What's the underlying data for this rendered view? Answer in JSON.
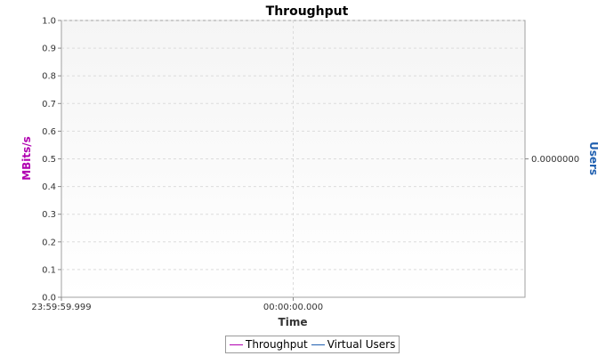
{
  "chart_data": {
    "type": "line",
    "title": "Throughput",
    "xlabel": "Time",
    "ylabel": "MBits/s",
    "y2label": "Users",
    "ylim": [
      0,
      1.0
    ],
    "yticks": [
      "0.0",
      "0.1",
      "0.2",
      "0.3",
      "0.4",
      "0.5",
      "0.6",
      "0.7",
      "0.8",
      "0.9",
      "1.0"
    ],
    "y2ticks": [
      "0.0000000"
    ],
    "xticks": [
      "23:59:59.999",
      "00:00:00.000"
    ],
    "grid": true,
    "legend_placement": "bottom",
    "series": [
      {
        "name": "Throughput",
        "color": "#b000b0",
        "values": []
      },
      {
        "name": "Virtual Users",
        "color": "#2060b0",
        "values": []
      }
    ],
    "colors": {
      "ylabel": "#b000b0",
      "y2label": "#2060b0",
      "grid": "#dcdcdc",
      "plot_border": "#a0a0a0"
    }
  }
}
